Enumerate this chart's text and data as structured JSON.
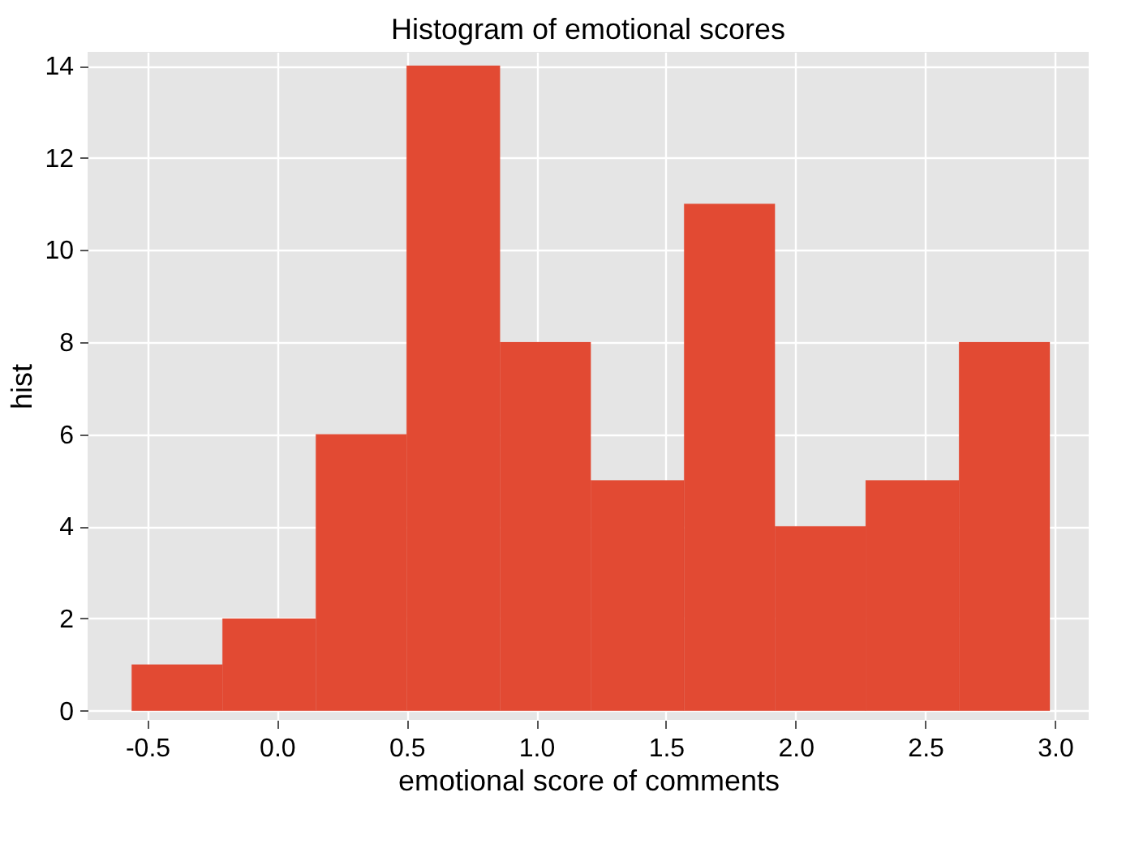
{
  "chart_data": {
    "type": "histogram",
    "title": "Histogram of emotional scores",
    "xlabel": "emotional score of comments",
    "ylabel": "hist",
    "bins": [
      -0.56,
      -0.21,
      0.15,
      0.5,
      0.86,
      1.21,
      1.57,
      1.92,
      2.27,
      2.63,
      2.98
    ],
    "values": [
      1,
      2,
      6,
      14,
      8,
      5,
      11,
      4,
      5,
      8
    ],
    "color": "#e24a33",
    "xlim": [
      -0.73,
      3.13
    ],
    "xticks": [
      {
        "value": -0.5,
        "label": "-0.5"
      },
      {
        "value": 0,
        "label": "0.0"
      },
      {
        "value": 0.5,
        "label": "0.5"
      },
      {
        "value": 1,
        "label": "1.0"
      },
      {
        "value": 1.5,
        "label": "1.5"
      },
      {
        "value": 2,
        "label": "2.0"
      },
      {
        "value": 2.5,
        "label": "2.5"
      },
      {
        "value": 3,
        "label": "3.0"
      }
    ],
    "ylim": [
      -0.2,
      14.3
    ],
    "yticks": [
      0,
      2,
      4,
      6,
      8,
      10,
      12,
      14
    ],
    "grid": true
  }
}
